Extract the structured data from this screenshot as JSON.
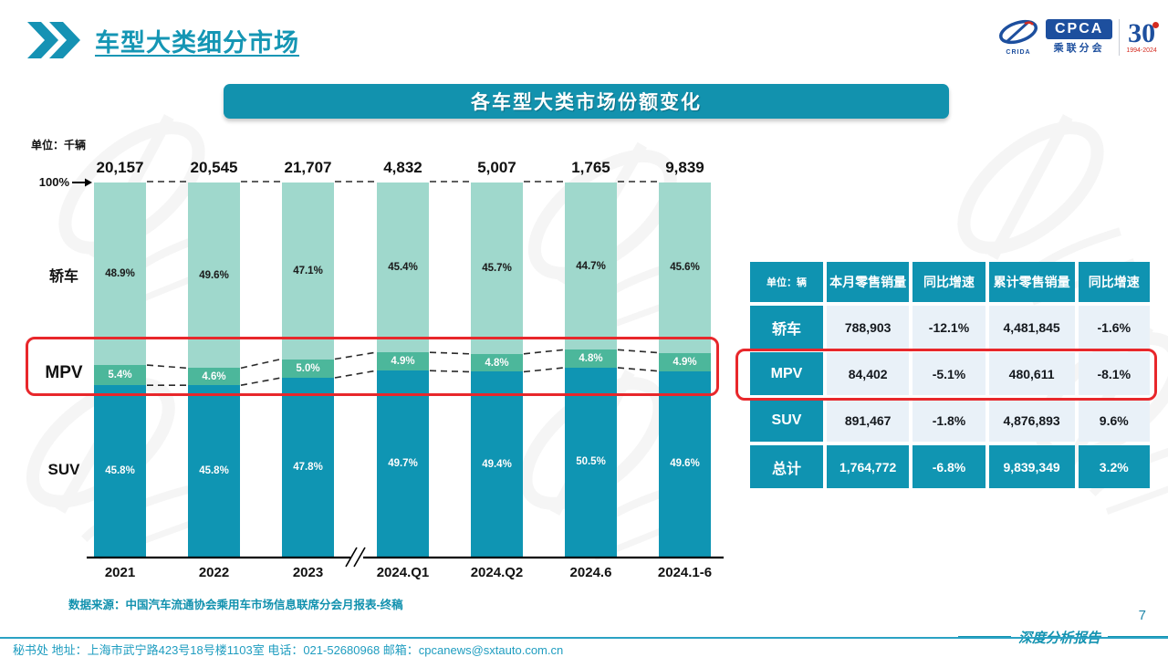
{
  "slide": {
    "title": "车型大类细分市场",
    "page_number": "7",
    "report_label": "深度分析报告"
  },
  "logo": {
    "cpca": "CPCA",
    "sub_label": "乘联分会",
    "swoosh_label": "CRIDA",
    "anniversary": "30",
    "anniversary_years": "1994-2024"
  },
  "banner": {
    "title": "各车型大类市场份额变化"
  },
  "chart_data": {
    "type": "bar",
    "stacked": true,
    "title": "各车型大类市场份额变化",
    "unit_label": "单位：千辆",
    "top_axis_label": "100%",
    "ylim": [
      0,
      100
    ],
    "categories": [
      "2021",
      "2022",
      "2023",
      "2024.Q1",
      "2024.Q2",
      "2024.6",
      "2024.1-6"
    ],
    "totals_thousands": [
      "20,157",
      "20,545",
      "21,707",
      "4,832",
      "5,007",
      "1,765",
      "9,839"
    ],
    "series": [
      {
        "key": "suv",
        "name": "SUV",
        "color": "#0f95b3",
        "label_color": "#ffffff",
        "values": [
          45.8,
          45.8,
          47.8,
          49.7,
          49.4,
          50.5,
          49.6
        ]
      },
      {
        "key": "mpv",
        "name": "MPV",
        "color": "#4cb79b",
        "label_color": "#ffffff",
        "values": [
          5.4,
          4.6,
          5.0,
          4.9,
          4.8,
          4.8,
          4.9
        ]
      },
      {
        "key": "sedan",
        "name": "轿车",
        "color": "#9fd8cc",
        "label_color": "#1c1c1c",
        "values": [
          48.9,
          49.6,
          47.1,
          45.4,
          45.7,
          44.7,
          45.6
        ]
      }
    ],
    "axis_break_between": [
      "2023",
      "2024.Q1"
    ],
    "highlight_series": "MPV",
    "highlight_color": "#e8272b"
  },
  "table": {
    "unit_header": "单位：辆",
    "headers": [
      "本月零售销量",
      "同比增速",
      "累计零售销量",
      "同比增速"
    ],
    "rows": [
      {
        "label": "轿车",
        "cells": [
          "788,903",
          "-12.1%",
          "4,481,845",
          "-1.6%"
        ]
      },
      {
        "label": "MPV",
        "cells": [
          "84,402",
          "-5.1%",
          "480,611",
          "-8.1%"
        ]
      },
      {
        "label": "SUV",
        "cells": [
          "891,467",
          "-1.8%",
          "4,876,893",
          "9.6%"
        ]
      },
      {
        "label": "总计",
        "cells": [
          "1,764,772",
          "-6.8%",
          "9,839,349",
          "3.2%"
        ]
      }
    ]
  },
  "source_note": "数据来源：中国汽车流通协会乘用车市场信息联席分会月报表-终稿",
  "footer_contact": "秘书处   地址：上海市武宁路423号18号楼1103室   电话：021-52680968    邮箱：cpcanews@sxtauto.com.cn",
  "colors": {
    "teal": "#1292b0",
    "red_highlight": "#e8272b",
    "cell_bg": "#e9f1f8"
  }
}
